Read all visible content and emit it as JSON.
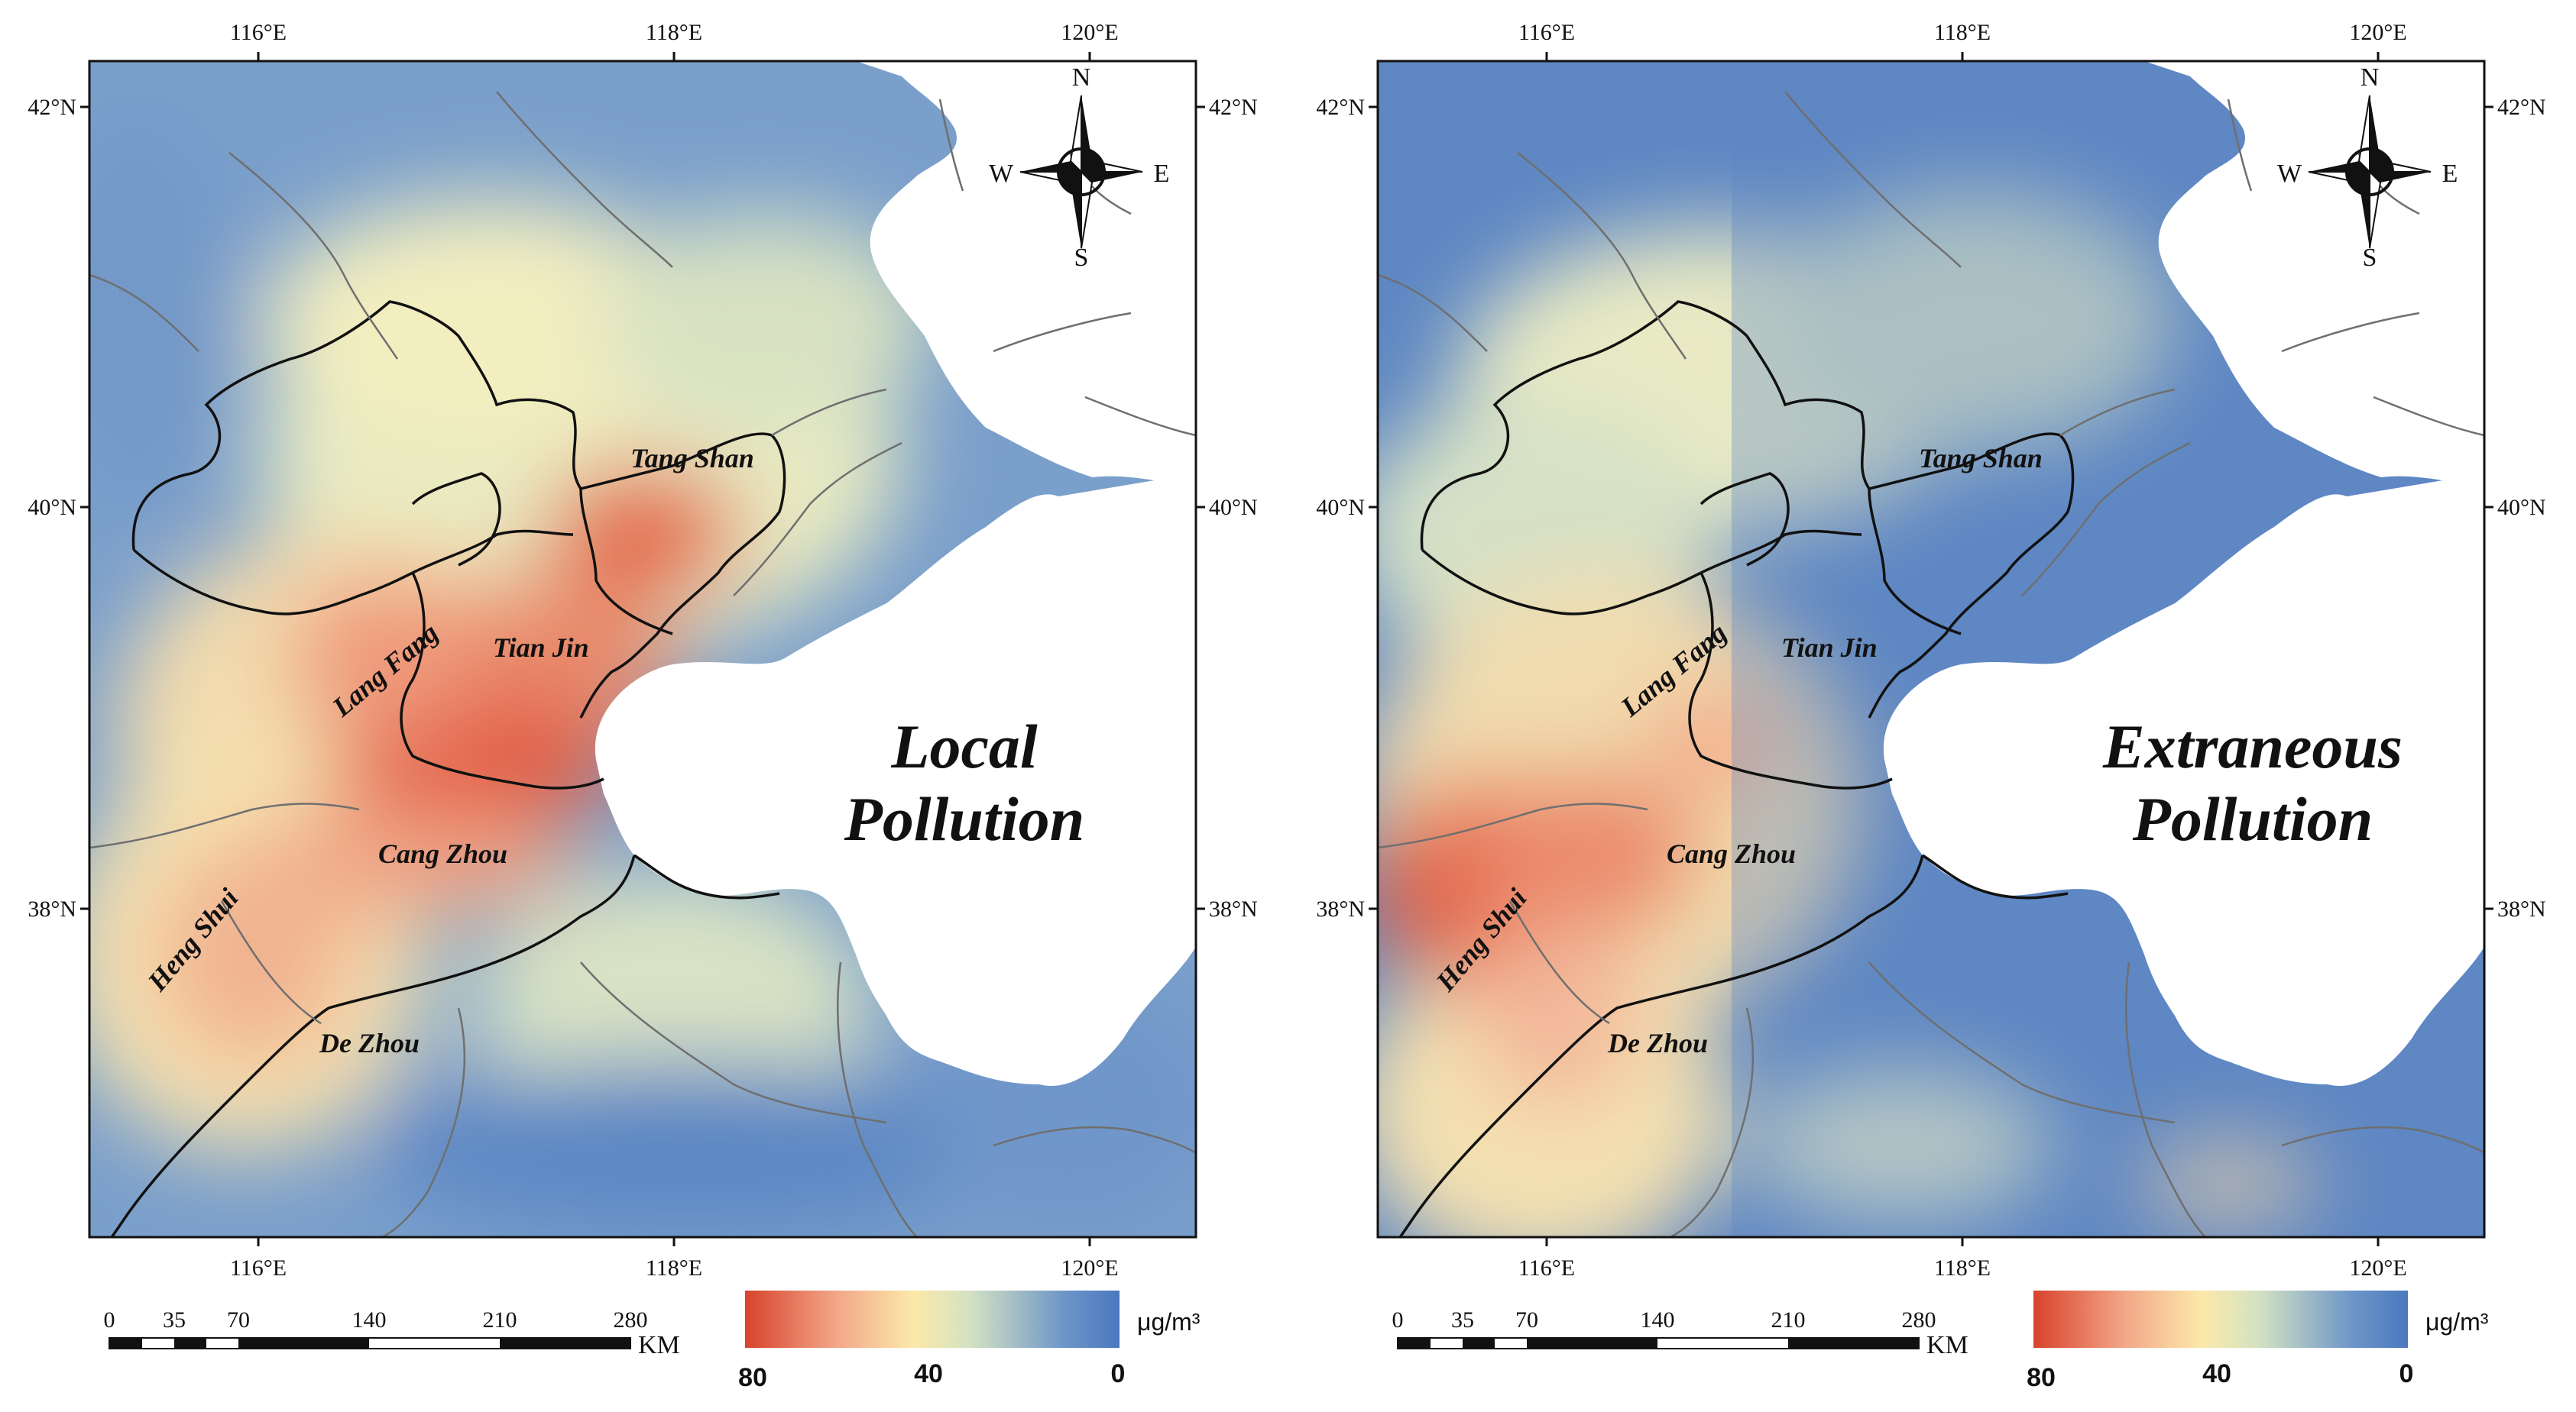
{
  "graticule": {
    "lon_ticks": [
      "116°E",
      "118°E",
      "120°E"
    ],
    "lat_ticks": [
      "42°N",
      "40°N",
      "38°N"
    ]
  },
  "compass": {
    "n": "N",
    "s": "S",
    "e": "E",
    "w": "W"
  },
  "scale_bar": {
    "ticks": [
      "0",
      "35",
      "70",
      "140",
      "210",
      "280"
    ],
    "unit": "KM"
  },
  "legend": {
    "unit": "μg/m³",
    "max_label": "80",
    "mid_label": "40",
    "min_label": "0",
    "colors": [
      "#d8432c",
      "#f3a98a",
      "#fbe9a9",
      "#d4e2c3",
      "#6e96c8",
      "#4a78bf"
    ]
  },
  "cities": {
    "tang_shan": "Tang Shan",
    "tian_jin": "Tian Jin",
    "lang_fang": "Lang Fang",
    "cang_zhou": "Cang Zhou",
    "heng_shui": "Heng Shui",
    "de_zhou": "De Zhou"
  },
  "panels": [
    {
      "title_line1": "Local",
      "title_line2": "Pollution"
    },
    {
      "title_line1": "Extraneous",
      "title_line2": "Pollution"
    }
  ]
}
